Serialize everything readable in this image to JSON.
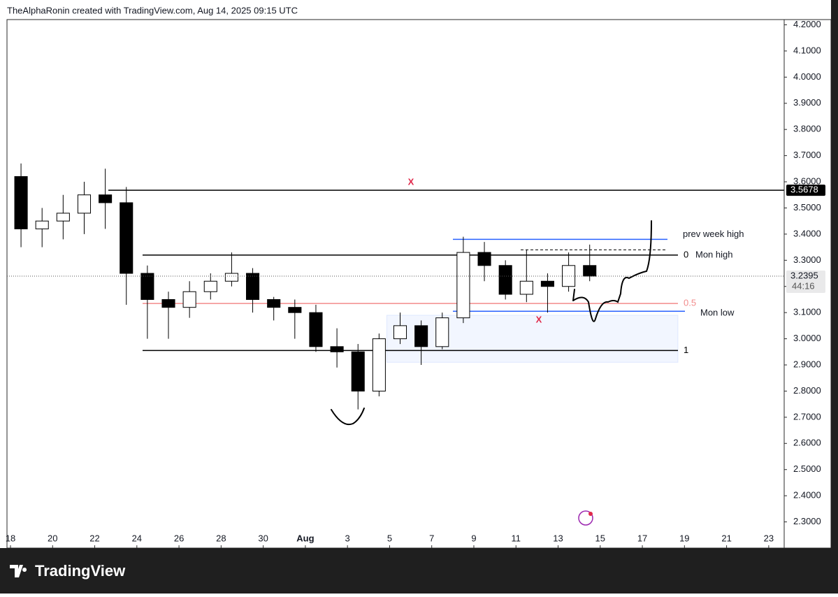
{
  "chart_data": {
    "type": "candlestick",
    "title": "TheAlphaRonin created with TradingView.com, Aug 14, 2025 09:15 UTC",
    "brand": "TradingView",
    "x": [
      "2025-07-18",
      "2025-07-19",
      "2025-07-20",
      "2025-07-21",
      "2025-07-22",
      "2025-07-23",
      "2025-07-24",
      "2025-07-25",
      "2025-07-26",
      "2025-07-27",
      "2025-07-28",
      "2025-07-29",
      "2025-07-30",
      "2025-07-31",
      "2025-08-01",
      "2025-08-02",
      "2025-08-03",
      "2025-08-04",
      "2025-08-05",
      "2025-08-06",
      "2025-08-07",
      "2025-08-08",
      "2025-08-09",
      "2025-08-10",
      "2025-08-11",
      "2025-08-12",
      "2025-08-13",
      "2025-08-14"
    ],
    "open": [
      3.62,
      3.42,
      3.45,
      3.48,
      3.55,
      3.52,
      3.25,
      3.15,
      3.12,
      3.18,
      3.22,
      3.25,
      3.15,
      3.12,
      3.1,
      2.97,
      2.95,
      2.8,
      3.0,
      3.05,
      2.97,
      3.08,
      3.33,
      3.28,
      3.17,
      3.22,
      3.2,
      3.28
    ],
    "high": [
      3.67,
      3.5,
      3.55,
      3.6,
      3.65,
      3.58,
      3.28,
      3.18,
      3.22,
      3.25,
      3.33,
      3.27,
      3.16,
      3.15,
      3.13,
      3.04,
      2.98,
      3.02,
      3.1,
      3.07,
      3.1,
      3.39,
      3.37,
      3.3,
      3.34,
      3.25,
      3.33,
      3.36
    ],
    "low": [
      3.35,
      3.35,
      3.38,
      3.4,
      3.42,
      3.13,
      3.0,
      3.0,
      3.08,
      3.15,
      3.2,
      3.1,
      3.07,
      3.0,
      2.95,
      2.89,
      2.73,
      2.78,
      2.98,
      2.9,
      2.96,
      3.06,
      3.22,
      3.15,
      3.14,
      3.1,
      3.18,
      3.22
    ],
    "close": [
      3.42,
      3.45,
      3.48,
      3.55,
      3.52,
      3.25,
      3.15,
      3.12,
      3.18,
      3.22,
      3.25,
      3.15,
      3.12,
      3.1,
      2.97,
      2.95,
      2.8,
      3.0,
      3.05,
      2.97,
      3.08,
      3.33,
      3.28,
      3.17,
      3.22,
      3.2,
      3.28,
      3.2395
    ],
    "up_color": "#ffffff",
    "down_color": "#000000",
    "xlim": [
      "2025-07-18",
      "2025-08-24"
    ],
    "xticks": [
      {
        "value": "2025-07-18",
        "label": "18"
      },
      {
        "value": "2025-07-20",
        "label": "20"
      },
      {
        "value": "2025-07-22",
        "label": "22"
      },
      {
        "value": "2025-07-24",
        "label": "24"
      },
      {
        "value": "2025-07-26",
        "label": "26"
      },
      {
        "value": "2025-07-28",
        "label": "28"
      },
      {
        "value": "2025-07-30",
        "label": "30"
      },
      {
        "value": "2025-08-01",
        "label": "Aug"
      },
      {
        "value": "2025-08-03",
        "label": "3"
      },
      {
        "value": "2025-08-05",
        "label": "5"
      },
      {
        "value": "2025-08-07",
        "label": "7"
      },
      {
        "value": "2025-08-09",
        "label": "9"
      },
      {
        "value": "2025-08-11",
        "label": "11"
      },
      {
        "value": "2025-08-13",
        "label": "13"
      },
      {
        "value": "2025-08-15",
        "label": "15"
      },
      {
        "value": "2025-08-17",
        "label": "17"
      },
      {
        "value": "2025-08-19",
        "label": "19"
      },
      {
        "value": "2025-08-21",
        "label": "21"
      },
      {
        "value": "2025-08-23",
        "label": "23"
      }
    ],
    "ylim": [
      2.2,
      4.22
    ],
    "yticks": [
      {
        "value": 4.2,
        "label": "4.2000"
      },
      {
        "value": 4.1,
        "label": "4.1000"
      },
      {
        "value": 4.0,
        "label": "4.0000"
      },
      {
        "value": 3.9,
        "label": "3.9000"
      },
      {
        "value": 3.8,
        "label": "3.8000"
      },
      {
        "value": 3.7,
        "label": "3.7000"
      },
      {
        "value": 3.6,
        "label": "3.6000"
      },
      {
        "value": 3.5,
        "label": "3.5000"
      },
      {
        "value": 3.4,
        "label": "3.4000"
      },
      {
        "value": 3.3,
        "label": "3.3000"
      },
      {
        "value": 3.2,
        "label": "3.2000"
      },
      {
        "value": 3.1,
        "label": "3.1000"
      },
      {
        "value": 3.0,
        "label": "3.0000"
      },
      {
        "value": 2.9,
        "label": "2.9000"
      },
      {
        "value": 2.8,
        "label": "2.8000"
      },
      {
        "value": 2.7,
        "label": "2.7000"
      },
      {
        "value": 2.6,
        "label": "2.6000"
      },
      {
        "value": 2.5,
        "label": "2.5000"
      },
      {
        "value": 2.4,
        "label": "2.4000"
      },
      {
        "value": 2.3,
        "label": "2.3000"
      }
    ],
    "last_price": 3.2395,
    "countdown": "44:16",
    "levels": [
      {
        "value": 3.5678,
        "color": "#000000",
        "axis_label": 3.5678
      },
      {
        "value": 3.38,
        "color": "#2962ff",
        "label": "prev week high"
      },
      {
        "value": 3.32,
        "color": "#000000",
        "fib": 0,
        "label": "Mon high"
      },
      {
        "value": 3.34,
        "color": "#000000",
        "style": "dashed"
      },
      {
        "value": 3.135,
        "color": "#f28b8b",
        "fib": 0.5
      },
      {
        "value": 3.105,
        "color": "#2962ff",
        "label": "Mon low"
      },
      {
        "value": 2.955,
        "color": "#000000",
        "fib": 1
      }
    ],
    "zone": {
      "top": 3.09,
      "bottom": 2.91,
      "color": "#2962ff"
    },
    "annotations": [
      {
        "text": "X",
        "color": "#e0294a"
      },
      {
        "text": "X",
        "color": "#e0294a"
      }
    ]
  }
}
